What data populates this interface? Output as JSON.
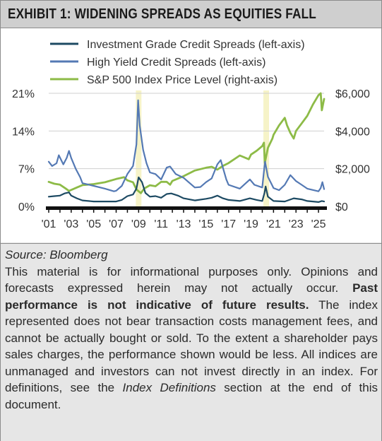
{
  "exhibit": {
    "title": "EXHIBIT 1: WIDENING SPREADS AS EQUITIES FALL"
  },
  "notes": {
    "source": "Source: Bloomberg",
    "disclaimer_1": "This material is for informational purposes only. Opinions and forecasts expressed herein may not actually occur. ",
    "disclaimer_bold": "Past performance is not indicative of future results.",
    "disclaimer_2": " The index represented does not bear transaction costs management fees, and cannot be actually bought or sold. To the extent a shareholder pays sales charges, the performance shown would be less. All indices are unmanaged and investors can not invest directly in an index. For definitions, see the ",
    "disclaimer_italic": "Index Definitions",
    "disclaimer_3": " section at the end of this document."
  },
  "chart_data": {
    "type": "line",
    "title": "",
    "xlabel": "",
    "ylabel": "",
    "xlim": [
      2001,
      2025.5
    ],
    "x_ticks": [
      "'01",
      "'03",
      "'05",
      "'07",
      "'09",
      "'11",
      "'13",
      "'15",
      "'17",
      "'19",
      "'21",
      "'23",
      "'25"
    ],
    "x_tick_values": [
      2001,
      2003,
      2005,
      2007,
      2009,
      2011,
      2013,
      2015,
      2017,
      2019,
      2021,
      2023,
      2025
    ],
    "y_left": {
      "ticks": [
        "0%",
        "7%",
        "14%",
        "21%"
      ],
      "tick_values": [
        0,
        7,
        14,
        21
      ],
      "ylim": [
        0,
        21
      ]
    },
    "y_right": {
      "ticks": [
        "$0",
        "$2,000",
        "$4,000",
        "$6,000"
      ],
      "tick_values": [
        0,
        2000,
        4000,
        6000
      ],
      "ylim": [
        0,
        6000
      ]
    },
    "grid": true,
    "legend_position": "top",
    "shaded_periods": [
      [
        2008.75,
        2009.25
      ],
      [
        2020.1,
        2020.6
      ]
    ],
    "colors": {
      "ig": "#1d4a63",
      "hy": "#5479b4",
      "spx": "#8dbb47",
      "shade": "#f6f3c8",
      "grid": "#cfcfcf",
      "axis": "#111111"
    },
    "series": [
      {
        "name": "Investment Grade Credit Spreads (left-axis)",
        "axis": "left",
        "x": [
          2001,
          2001.5,
          2002,
          2002.4,
          2002.8,
          2003,
          2003.5,
          2004,
          2005,
          2006,
          2007,
          2007.5,
          2008,
          2008.5,
          2008.8,
          2009,
          2009.3,
          2009.6,
          2010,
          2010.5,
          2011,
          2011.5,
          2011.9,
          2012.5,
          2013,
          2014,
          2015,
          2015.5,
          2016,
          2016.5,
          2017,
          2018,
          2018.9,
          2019.5,
          2020,
          2020.2,
          2020.3,
          2020.5,
          2021,
          2022,
          2022.8,
          2023.5,
          2024,
          2025,
          2025.3,
          2025.5
        ],
        "y": [
          1.8,
          1.9,
          2.0,
          2.4,
          2.6,
          2.0,
          1.5,
          1.1,
          0.9,
          0.9,
          0.9,
          1.2,
          1.9,
          2.2,
          3.3,
          5.4,
          4.5,
          2.5,
          1.8,
          1.9,
          1.6,
          2.3,
          2.4,
          2.0,
          1.5,
          1.1,
          1.4,
          1.6,
          2.0,
          1.5,
          1.2,
          1.0,
          1.5,
          1.2,
          1.0,
          2.5,
          3.7,
          1.8,
          1.0,
          0.9,
          1.5,
          1.3,
          1.0,
          0.8,
          1.0,
          0.9
        ]
      },
      {
        "name": "High Yield Credit Spreads (left-axis)",
        "axis": "left",
        "x": [
          2001,
          2001.3,
          2001.7,
          2001.9,
          2002.3,
          2002.6,
          2002.8,
          2003,
          2003.4,
          2003.8,
          2004,
          2005,
          2006,
          2006.8,
          2007,
          2007.5,
          2008,
          2008.5,
          2008.8,
          2008.95,
          2009.1,
          2009.4,
          2009.7,
          2010,
          2010.5,
          2011,
          2011.5,
          2011.8,
          2012.3,
          2013,
          2014,
          2014.5,
          2015,
          2015.5,
          2016,
          2016.3,
          2016.8,
          2017,
          2018,
          2018.9,
          2019.3,
          2020,
          2020.2,
          2020.25,
          2020.5,
          2021,
          2021.5,
          2022,
          2022.5,
          2023,
          2023.5,
          2024,
          2025,
          2025.2,
          2025.35,
          2025.5
        ],
        "y": [
          8.3,
          7.5,
          8.0,
          9.5,
          7.8,
          9.0,
          10.3,
          9.0,
          7.0,
          5.4,
          4.3,
          3.8,
          3.3,
          2.8,
          2.9,
          3.8,
          6.0,
          7.5,
          11.5,
          19.7,
          15.0,
          10.5,
          8.0,
          6.3,
          6.0,
          5.0,
          7.2,
          7.4,
          6.0,
          5.3,
          3.5,
          3.6,
          4.5,
          5.2,
          7.8,
          8.6,
          5.0,
          4.0,
          3.3,
          5.0,
          4.0,
          3.5,
          7.5,
          8.3,
          5.5,
          3.4,
          3.0,
          4.0,
          5.8,
          4.7,
          4.0,
          3.3,
          2.8,
          3.4,
          4.5,
          3.2
        ]
      },
      {
        "name": "S&P 500 Index Price Level (right-axis)",
        "axis": "right",
        "x": [
          2001,
          2001.5,
          2002,
          2002.5,
          2002.8,
          2003.5,
          2004,
          2005,
          2006,
          2007,
          2007.7,
          2008,
          2008.5,
          2008.8,
          2009.2,
          2009.5,
          2010,
          2010.5,
          2011,
          2011.5,
          2011.8,
          2012,
          2013,
          2014,
          2015,
          2015.5,
          2016,
          2016.5,
          2017,
          2018,
          2018.8,
          2019,
          2019.5,
          2020,
          2020.15,
          2020.22,
          2020.5,
          2020.9,
          2021,
          2021.5,
          2022,
          2022.2,
          2022.5,
          2022.8,
          2023,
          2023.5,
          2024,
          2024.5,
          2025,
          2025.2,
          2025.3,
          2025.5
        ],
        "y": [
          1300,
          1200,
          1150,
          950,
          820,
          1000,
          1130,
          1180,
          1280,
          1450,
          1550,
          1380,
          1280,
          900,
          700,
          950,
          1120,
          1070,
          1300,
          1300,
          1150,
          1350,
          1600,
          1900,
          2050,
          2100,
          1950,
          2150,
          2300,
          2700,
          2500,
          2750,
          2950,
          3200,
          3380,
          2300,
          3100,
          3600,
          3800,
          4300,
          4700,
          4300,
          3900,
          3600,
          4000,
          4400,
          4800,
          5400,
          5900,
          6000,
          5100,
          5700
        ]
      }
    ]
  }
}
